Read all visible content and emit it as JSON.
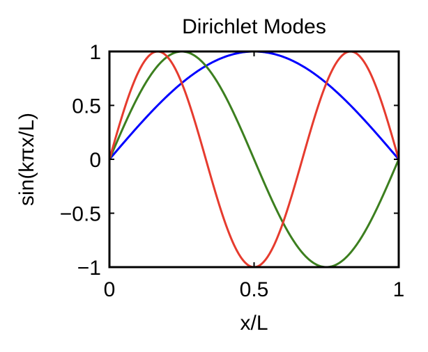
{
  "chart_data": {
    "type": "line",
    "title": "Dirichlet Modes",
    "xlabel": "x/L",
    "ylabel": "sin(kπx/L)",
    "xlim": [
      0,
      1
    ],
    "ylim": [
      -1,
      1
    ],
    "x_ticks": [
      0,
      0.5,
      1
    ],
    "x_tick_labels": [
      "0",
      "0.5",
      "1"
    ],
    "y_ticks": [
      -1,
      -0.5,
      0,
      0.5,
      1
    ],
    "y_tick_labels": [
      "−1",
      "−0.5",
      "0",
      "0.5",
      "1"
    ],
    "grid": false,
    "legend": false,
    "x": [
      0,
      0.05,
      0.1,
      0.15,
      0.2,
      0.25,
      0.3,
      0.35,
      0.4,
      0.45,
      0.5,
      0.55,
      0.6,
      0.65,
      0.7,
      0.75,
      0.8,
      0.85,
      0.9,
      0.95,
      1
    ],
    "series": [
      {
        "color": "#0000ff",
        "k": 1,
        "values": [
          0,
          0.156,
          0.309,
          0.454,
          0.588,
          0.707,
          0.809,
          0.891,
          0.951,
          0.988,
          1,
          0.988,
          0.951,
          0.891,
          0.809,
          0.707,
          0.588,
          0.454,
          0.309,
          0.156,
          0
        ]
      },
      {
        "color": "#3c7f1f",
        "k": 2,
        "values": [
          0,
          0.309,
          0.588,
          0.809,
          0.951,
          1,
          0.951,
          0.809,
          0.588,
          0.309,
          0,
          -0.309,
          -0.588,
          -0.809,
          -0.951,
          -1,
          -0.951,
          -0.809,
          -0.588,
          -0.309,
          0
        ]
      },
      {
        "color": "#e63b2e",
        "k": 3,
        "values": [
          0,
          0.454,
          0.809,
          0.988,
          0.951,
          0.707,
          0.309,
          -0.156,
          -0.588,
          -0.891,
          -1,
          -0.891,
          -0.588,
          -0.156,
          0.309,
          0.707,
          0.951,
          0.988,
          0.809,
          0.454,
          0
        ]
      }
    ]
  }
}
